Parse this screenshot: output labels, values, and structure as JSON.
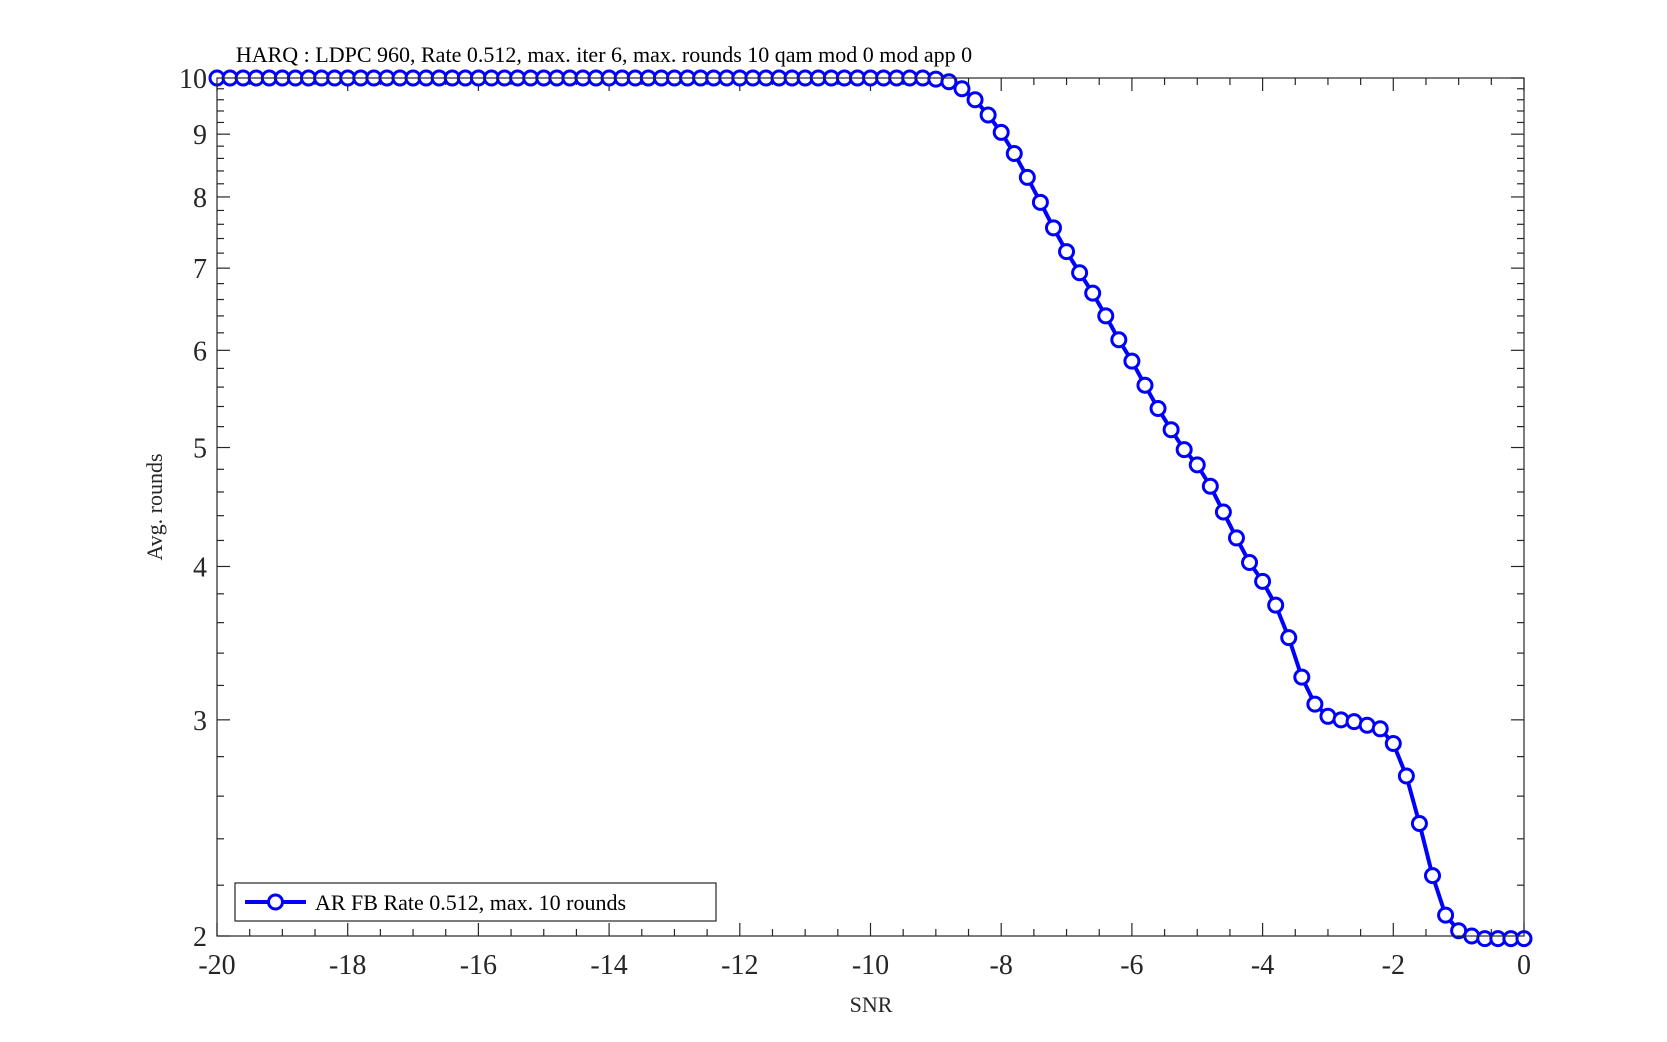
{
  "chart_data": {
    "type": "line",
    "title": "HARQ : LDPC 960, Rate 0.512, max. iter 6, max. rounds 10 qam mod 0 mod app 0",
    "xlabel": "SNR",
    "ylabel": "Avg. rounds",
    "xlim": [
      -20,
      0
    ],
    "ylim": [
      2,
      10
    ],
    "yscale": "log",
    "x_ticks": [
      -20,
      -18,
      -16,
      -14,
      -12,
      -10,
      -8,
      -6,
      -4,
      -2,
      0
    ],
    "x_tick_labels": [
      "-20",
      "-18",
      "-16",
      "-14",
      "-12",
      "-10",
      "-8",
      "-6",
      "-4",
      "-2",
      "0"
    ],
    "y_ticks": [
      2,
      3,
      4,
      5,
      6,
      7,
      8,
      9,
      10
    ],
    "y_tick_labels": [
      "2",
      "3",
      "4",
      "5",
      "6",
      "7",
      "8",
      "9",
      "10"
    ],
    "grid": false,
    "box": true,
    "legend_position": "bottom-left",
    "series": [
      {
        "name": "AR FB Rate 0.512, max. 10 rounds",
        "color": "#0000ff",
        "marker": "circle",
        "x": [
          -20,
          -19.8,
          -19.6,
          -19.4,
          -19.2,
          -19,
          -18.8,
          -18.6,
          -18.4,
          -18.2,
          -18,
          -17.8,
          -17.6,
          -17.4,
          -17.2,
          -17,
          -16.8,
          -16.6,
          -16.4,
          -16.2,
          -16,
          -15.8,
          -15.6,
          -15.4,
          -15.2,
          -15,
          -14.8,
          -14.6,
          -14.4,
          -14.2,
          -14,
          -13.8,
          -13.6,
          -13.4,
          -13.2,
          -13,
          -12.8,
          -12.6,
          -12.4,
          -12.2,
          -12,
          -11.8,
          -11.6,
          -11.4,
          -11.2,
          -11,
          -10.8,
          -10.6,
          -10.4,
          -10.2,
          -10,
          -9.8,
          -9.6,
          -9.4,
          -9.2,
          -9,
          -8.8,
          -8.6,
          -8.4,
          -8.2,
          -8,
          -7.8,
          -7.6,
          -7.4,
          -7.2,
          -7,
          -6.8,
          -6.6,
          -6.4,
          -6.2,
          -6,
          -5.8,
          -5.6,
          -5.4,
          -5.2,
          -5,
          -4.8,
          -4.6,
          -4.4,
          -4.2,
          -4,
          -3.8,
          -3.6,
          -3.4,
          -3.2,
          -3,
          -2.8,
          -2.6,
          -2.4,
          -2.2,
          -2,
          -1.8,
          -1.6,
          -1.4,
          -1.2,
          -1,
          -0.8,
          -0.6,
          -0.4,
          -0.2,
          0
        ],
        "y": [
          10,
          10,
          10,
          10,
          10,
          10,
          10,
          10,
          10,
          10,
          10,
          10,
          10,
          10,
          10,
          10,
          10,
          10,
          10,
          10,
          10,
          10,
          10,
          10,
          10,
          10,
          10,
          10,
          10,
          10,
          10,
          10,
          10,
          10,
          10,
          10,
          10,
          10,
          10,
          10,
          10,
          10,
          10,
          10,
          10,
          10,
          10,
          10,
          10,
          10,
          10,
          10,
          10,
          10,
          10,
          9.98,
          9.93,
          9.8,
          9.6,
          9.33,
          9.03,
          8.68,
          8.3,
          7.92,
          7.55,
          7.22,
          6.94,
          6.68,
          6.4,
          6.12,
          5.88,
          5.62,
          5.38,
          5.17,
          4.98,
          4.84,
          4.65,
          4.43,
          4.22,
          4.03,
          3.89,
          3.72,
          3.5,
          3.25,
          3.09,
          3.02,
          3.0,
          2.99,
          2.97,
          2.95,
          2.87,
          2.7,
          2.47,
          2.24,
          2.08,
          2.02,
          2.0,
          1.99,
          1.99,
          1.99,
          1.99
        ]
      }
    ]
  }
}
